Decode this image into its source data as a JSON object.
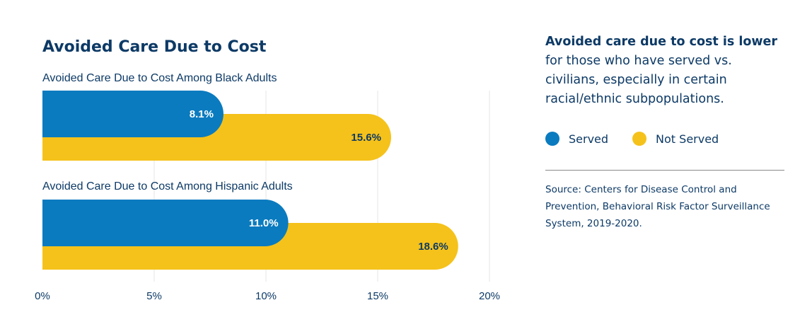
{
  "header": {
    "title": "Avoided Care Due to Cost"
  },
  "chart_data": {
    "type": "bar",
    "orientation": "horizontal",
    "groups": [
      {
        "title": "Avoided Care Due to Cost Among Black Adults",
        "values": [
          {
            "series": "Served",
            "value": 8.1,
            "label": "8.1%"
          },
          {
            "series": "Not Served",
            "value": 15.6,
            "label": "15.6%"
          }
        ]
      },
      {
        "title": "Avoided Care Due to Cost Among Hispanic Adults",
        "values": [
          {
            "series": "Served",
            "value": 11.0,
            "label": "11.0%"
          },
          {
            "series": "Not Served",
            "value": 18.6,
            "label": "18.6%"
          }
        ]
      }
    ],
    "xlim": [
      0,
      20
    ],
    "xticks": [
      "0%",
      "5%",
      "10%",
      "15%",
      "20%"
    ],
    "grid": true,
    "legend_position": "right"
  },
  "legend": {
    "items": [
      {
        "label": "Served",
        "color": "#0a7bbf"
      },
      {
        "label": "Not Served",
        "color": "#f5c21b"
      }
    ]
  },
  "colors": {
    "served": "#0a7bbf",
    "not_served": "#f5c21b",
    "text": "#0d3a66"
  },
  "sidebar": {
    "headline_strong": "Avoided care due to cost is lower",
    "headline_rest": "for those who have served vs. civilians, especially in certain racial/ethnic subpopulations.",
    "source": "Source: Centers for Disease Control and Prevention, Behavioral Risk Factor Surveillance System, 2019-2020."
  }
}
